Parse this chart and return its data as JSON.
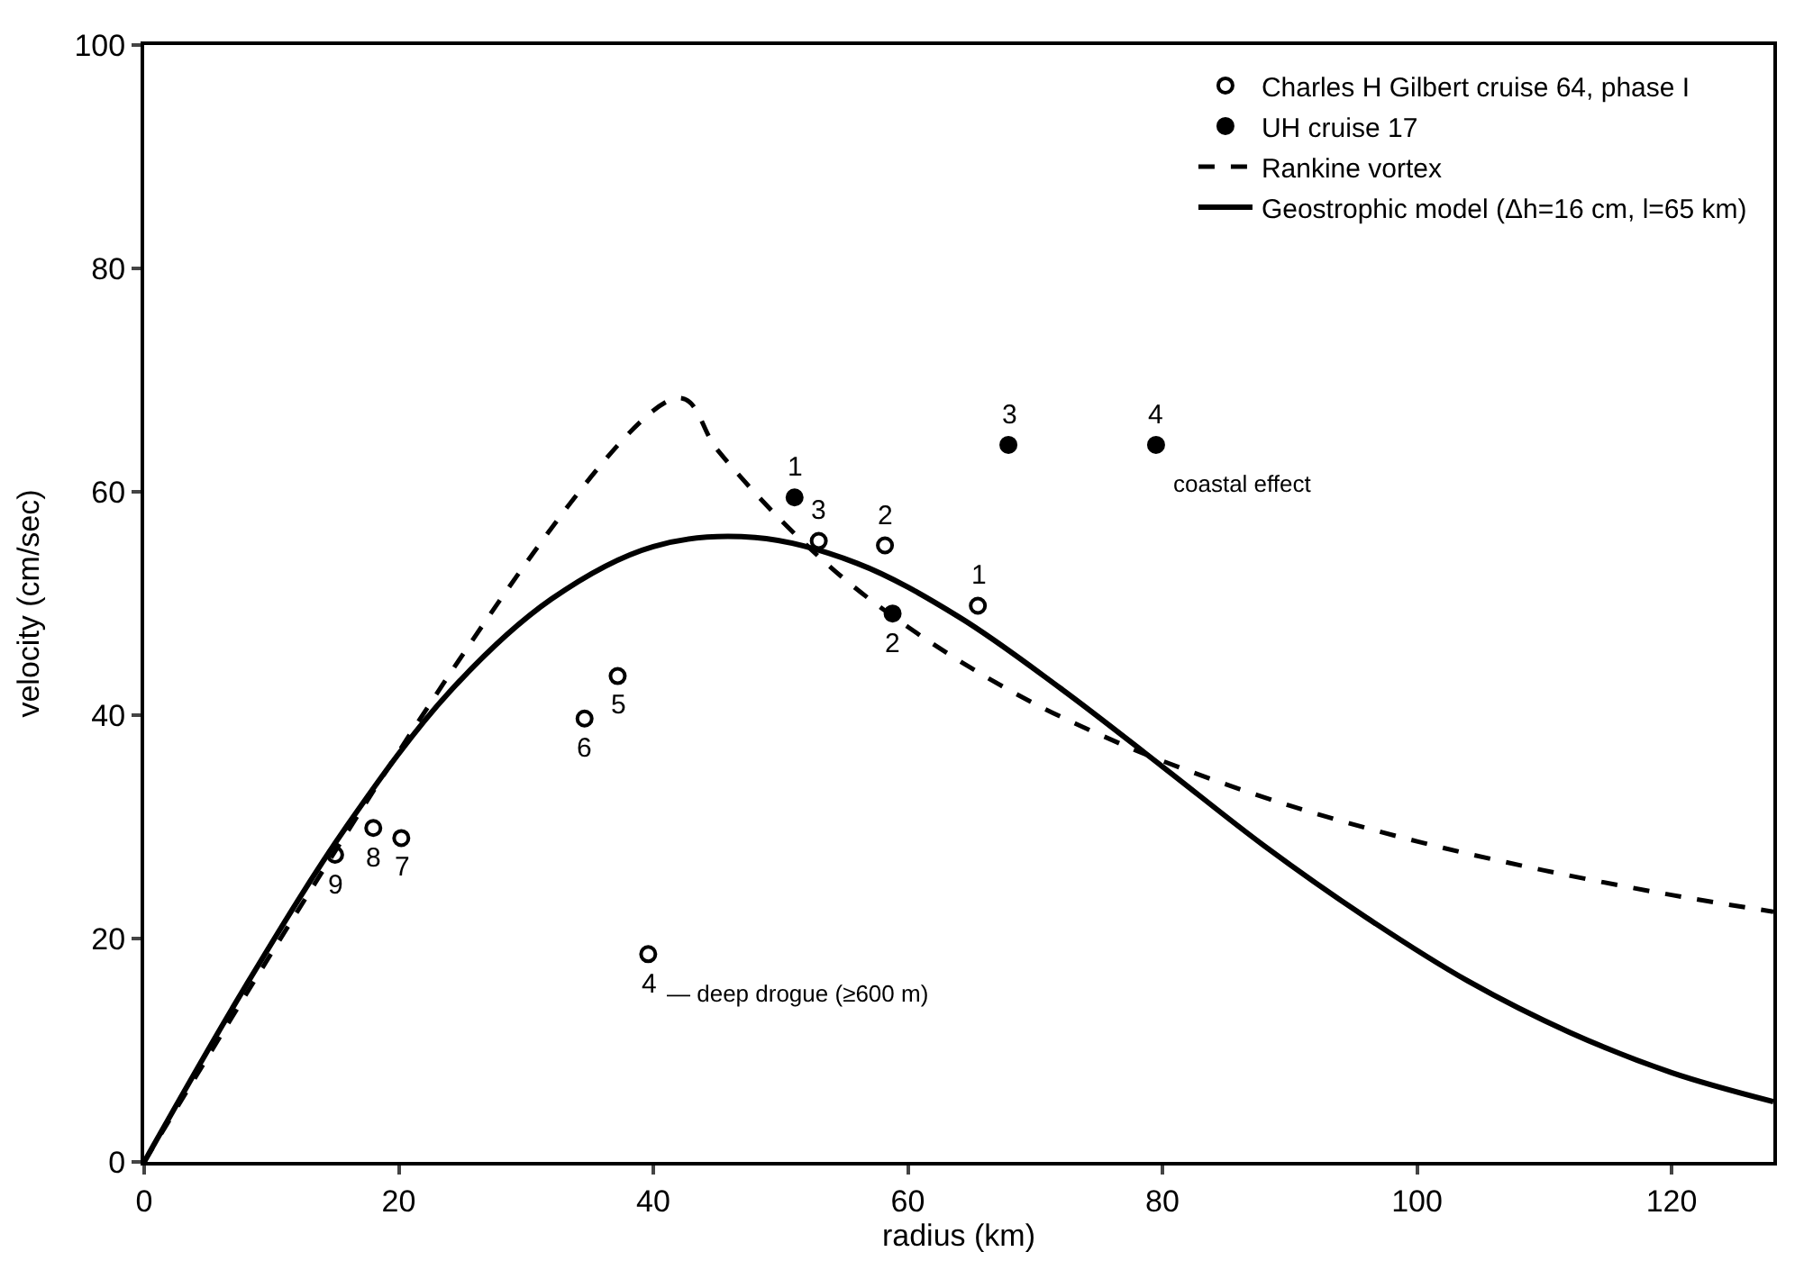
{
  "chart_data": {
    "type": "scatter",
    "xlabel": "radius (km)",
    "ylabel": "velocity (cm/sec)",
    "xlim": [
      0,
      128
    ],
    "ylim": [
      0,
      100
    ],
    "xticks": [
      0,
      20,
      40,
      60,
      80,
      100,
      120
    ],
    "yticks": [
      0,
      20,
      40,
      60,
      80,
      100
    ],
    "legend": "top right",
    "series": [
      {
        "name": "Charles H Gilbert cruise 64, phase I",
        "marker": "circle-open",
        "color": "#000000",
        "x": [
          65.5,
          58.2,
          53.0,
          39.6,
          37.2,
          34.6,
          20.2,
          18.0,
          15.0
        ],
        "values": [
          49.8,
          55.2,
          55.6,
          18.6,
          43.5,
          39.7,
          29.0,
          29.9,
          27.5
        ]
      },
      {
        "name": "UH cruise 17",
        "marker": "circle",
        "color": "#000000",
        "x": [
          51.1,
          58.8,
          67.9,
          79.5
        ],
        "values": [
          59.5,
          49.1,
          64.2,
          64.2
        ]
      },
      {
        "name": "Rankine vortex",
        "type": "line",
        "line_style": "dashed",
        "color": "#000000",
        "x": [
          0,
          42,
          45,
          50,
          55,
          60,
          65,
          70,
          75,
          80,
          90,
          100,
          110,
          120,
          128
        ],
        "values": [
          0,
          68.4,
          63.8,
          57.5,
          52.2,
          47.9,
          44.2,
          41.0,
          38.3,
          35.9,
          31.9,
          28.7,
          26.1,
          23.9,
          22.4
        ]
      },
      {
        "name": "Geostrophic model (Δh=16 cm, l=65 km)",
        "type": "line",
        "line_style": "solid",
        "color": "#000000",
        "x": [
          0,
          8,
          16,
          24,
          32,
          40,
          48,
          56,
          64,
          72,
          80,
          88,
          96,
          104,
          112,
          120,
          128
        ],
        "values": [
          0,
          15.8,
          30.2,
          42.1,
          50.4,
          55.1,
          55.9,
          53.6,
          48.8,
          42.4,
          35.4,
          28.3,
          21.9,
          16.2,
          11.6,
          8.0,
          5.4
        ]
      }
    ],
    "annotations": [
      {
        "text": "1",
        "x": 65.5,
        "y": 49.8
      },
      {
        "text": "2",
        "x": 58.2,
        "y": 55.2
      },
      {
        "text": "3",
        "x": 53.0,
        "y": 55.6
      },
      {
        "text": "4",
        "x": 39.6,
        "y": 18.6
      },
      {
        "text": "— deep drogue (≥600 m)",
        "x": 39.6,
        "y": 18.6
      },
      {
        "text": "5",
        "x": 37.2,
        "y": 43.5
      },
      {
        "text": "6",
        "x": 34.6,
        "y": 39.7
      },
      {
        "text": "7",
        "x": 20.2,
        "y": 29.0
      },
      {
        "text": "8",
        "x": 18.0,
        "y": 29.9
      },
      {
        "text": "9",
        "x": 15.0,
        "y": 27.5
      },
      {
        "text": "1",
        "x": 51.1,
        "y": 59.5
      },
      {
        "text": "2",
        "x": 58.8,
        "y": 49.1
      },
      {
        "text": "3",
        "x": 67.9,
        "y": 64.2
      },
      {
        "text": "4",
        "x": 79.5,
        "y": 64.2
      },
      {
        "text": "coastal effect",
        "x": 79.5,
        "y": 64.2
      }
    ]
  }
}
